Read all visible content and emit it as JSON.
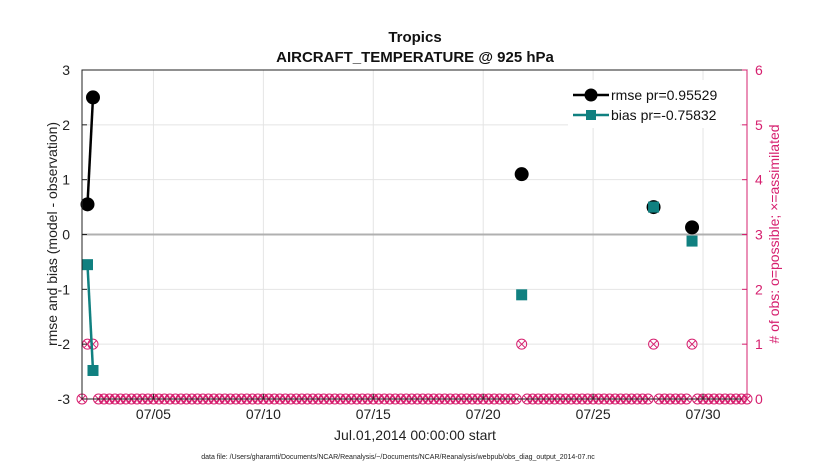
{
  "chart_data": {
    "type": "line",
    "title_line1": "Tropics",
    "title_line2": "AIRCRAFT_TEMPERATURE @ 925 hPa",
    "xlabel": "Jul.01,2014 00:00:00 start",
    "ylabel_left": "rmse and bias (model - observation)",
    "ylabel_right": "# of obs: o=possible; ×=assimilated",
    "footnote": "data file: /Users/gharamti/Documents/NCAR/Reanalysis/~/Documents/NCAR/Reanalysis/webpub/obs_diag_output_2014-07.nc",
    "xlim": [
      0.75,
      31.0
    ],
    "ylim_left": [
      -3,
      3
    ],
    "ylim_right": [
      0,
      6
    ],
    "x_ticks": [
      {
        "day": 4,
        "label": "07/05"
      },
      {
        "day": 9,
        "label": "07/10"
      },
      {
        "day": 14,
        "label": "07/15"
      },
      {
        "day": 19,
        "label": "07/20"
      },
      {
        "day": 24,
        "label": "07/25"
      },
      {
        "day": 29,
        "label": "07/30"
      }
    ],
    "y_ticks_left": [
      {
        "v": -3,
        "label": "-3"
      },
      {
        "v": -2,
        "label": "-2"
      },
      {
        "v": -1,
        "label": "-1"
      },
      {
        "v": 0,
        "label": "0"
      },
      {
        "v": 1,
        "label": "1"
      },
      {
        "v": 2,
        "label": "2"
      },
      {
        "v": 3,
        "label": "3"
      }
    ],
    "y_ticks_right": [
      {
        "v": 0,
        "label": "0"
      },
      {
        "v": 1,
        "label": "1"
      },
      {
        "v": 2,
        "label": "2"
      },
      {
        "v": 3,
        "label": "3"
      },
      {
        "v": 4,
        "label": "4"
      },
      {
        "v": 5,
        "label": "5"
      },
      {
        "v": 6,
        "label": "6"
      }
    ],
    "series": [
      {
        "name": "rmse pr=0.95529",
        "color": "#000000",
        "marker": "circle",
        "points": [
          [
            1.0,
            0.55
          ],
          [
            1.25,
            2.5
          ],
          [
            20.75,
            1.1
          ],
          [
            26.75,
            0.5
          ],
          [
            28.5,
            0.13
          ]
        ]
      },
      {
        "name": "bias pr=-0.75832",
        "color": "#108080",
        "marker": "square",
        "points": [
          [
            1.0,
            -0.55
          ],
          [
            1.25,
            -2.48
          ],
          [
            20.75,
            -1.1
          ],
          [
            26.75,
            0.5
          ],
          [
            28.5,
            -0.12
          ]
        ]
      }
    ],
    "obs_counts": {
      "color": "#d6206f",
      "start_day": 0.75,
      "end_day": 31.0,
      "step": 0.25,
      "count_one_at": [
        1.0,
        1.25,
        20.75,
        26.75,
        28.5
      ]
    },
    "zero_line": true,
    "grid": true,
    "legend_position": "top-right"
  }
}
